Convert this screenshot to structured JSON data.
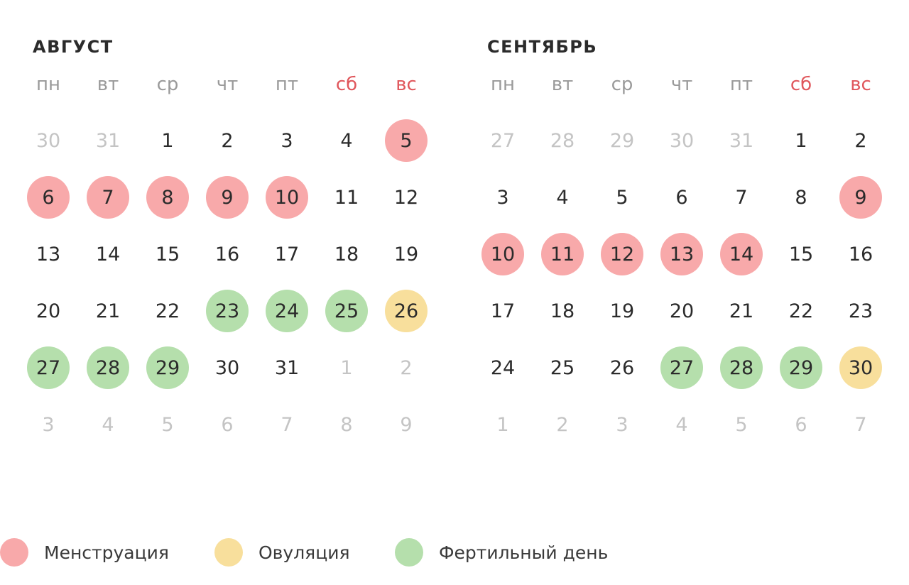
{
  "colors": {
    "menstruation": "#f8a9aa",
    "ovulation": "#f8df9c",
    "fertile": "#b5dfac",
    "weekend_text": "#e0575c",
    "muted_text": "#c4c4c4",
    "weekday_text": "#9a9a9a"
  },
  "weekdays": [
    {
      "label": "пн",
      "weekend": false
    },
    {
      "label": "вт",
      "weekend": false
    },
    {
      "label": "ср",
      "weekend": false
    },
    {
      "label": "чт",
      "weekend": false
    },
    {
      "label": "пт",
      "weekend": false
    },
    {
      "label": "сб",
      "weekend": true
    },
    {
      "label": "вс",
      "weekend": true
    }
  ],
  "months": [
    {
      "title": "АВГУСТ",
      "weeks": [
        [
          {
            "d": "30",
            "m": true
          },
          {
            "d": "31",
            "m": true
          },
          {
            "d": "1"
          },
          {
            "d": "2"
          },
          {
            "d": "3"
          },
          {
            "d": "4"
          },
          {
            "d": "5",
            "t": "menstruation"
          }
        ],
        [
          {
            "d": "6",
            "t": "menstruation"
          },
          {
            "d": "7",
            "t": "menstruation"
          },
          {
            "d": "8",
            "t": "menstruation"
          },
          {
            "d": "9",
            "t": "menstruation"
          },
          {
            "d": "10",
            "t": "menstruation"
          },
          {
            "d": "11"
          },
          {
            "d": "12"
          }
        ],
        [
          {
            "d": "13"
          },
          {
            "d": "14"
          },
          {
            "d": "15"
          },
          {
            "d": "16"
          },
          {
            "d": "17"
          },
          {
            "d": "18"
          },
          {
            "d": "19"
          }
        ],
        [
          {
            "d": "20"
          },
          {
            "d": "21"
          },
          {
            "d": "22"
          },
          {
            "d": "23",
            "t": "fertile"
          },
          {
            "d": "24",
            "t": "fertile"
          },
          {
            "d": "25",
            "t": "fertile"
          },
          {
            "d": "26",
            "t": "ovulation"
          }
        ],
        [
          {
            "d": "27",
            "t": "fertile"
          },
          {
            "d": "28",
            "t": "fertile"
          },
          {
            "d": "29",
            "t": "fertile"
          },
          {
            "d": "30"
          },
          {
            "d": "31"
          },
          {
            "d": "1",
            "m": true
          },
          {
            "d": "2",
            "m": true
          }
        ],
        [
          {
            "d": "3",
            "m": true
          },
          {
            "d": "4",
            "m": true
          },
          {
            "d": "5",
            "m": true
          },
          {
            "d": "6",
            "m": true
          },
          {
            "d": "7",
            "m": true
          },
          {
            "d": "8",
            "m": true
          },
          {
            "d": "9",
            "m": true
          }
        ]
      ]
    },
    {
      "title": "СЕНТЯБРЬ",
      "weeks": [
        [
          {
            "d": "27",
            "m": true
          },
          {
            "d": "28",
            "m": true
          },
          {
            "d": "29",
            "m": true
          },
          {
            "d": "30",
            "m": true
          },
          {
            "d": "31",
            "m": true
          },
          {
            "d": "1"
          },
          {
            "d": "2"
          }
        ],
        [
          {
            "d": "3"
          },
          {
            "d": "4"
          },
          {
            "d": "5"
          },
          {
            "d": "6"
          },
          {
            "d": "7"
          },
          {
            "d": "8"
          },
          {
            "d": "9",
            "t": "menstruation"
          }
        ],
        [
          {
            "d": "10",
            "t": "menstruation"
          },
          {
            "d": "11",
            "t": "menstruation"
          },
          {
            "d": "12",
            "t": "menstruation"
          },
          {
            "d": "13",
            "t": "menstruation"
          },
          {
            "d": "14",
            "t": "menstruation"
          },
          {
            "d": "15"
          },
          {
            "d": "16"
          }
        ],
        [
          {
            "d": "17"
          },
          {
            "d": "18"
          },
          {
            "d": "19"
          },
          {
            "d": "20"
          },
          {
            "d": "21"
          },
          {
            "d": "22"
          },
          {
            "d": "23"
          }
        ],
        [
          {
            "d": "24"
          },
          {
            "d": "25"
          },
          {
            "d": "26"
          },
          {
            "d": "27",
            "t": "fertile"
          },
          {
            "d": "28",
            "t": "fertile"
          },
          {
            "d": "29",
            "t": "fertile"
          },
          {
            "d": "30",
            "t": "ovulation"
          }
        ],
        [
          {
            "d": "1",
            "m": true
          },
          {
            "d": "2",
            "m": true
          },
          {
            "d": "3",
            "m": true
          },
          {
            "d": "4",
            "m": true
          },
          {
            "d": "5",
            "m": true
          },
          {
            "d": "6",
            "m": true
          },
          {
            "d": "7",
            "m": true
          }
        ]
      ]
    }
  ],
  "legend": [
    {
      "type": "menstruation",
      "label": "Менструация"
    },
    {
      "type": "ovulation",
      "label": "Овуляция"
    },
    {
      "type": "fertile",
      "label": "Фертильный день"
    }
  ]
}
